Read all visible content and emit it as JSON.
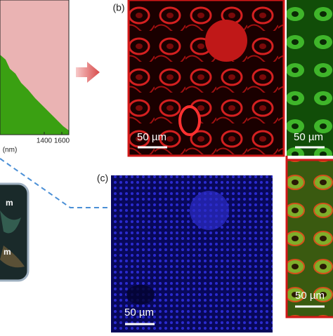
{
  "panel_a": {
    "tick_labels": [
      "1400",
      "1600"
    ],
    "unit_label": "(nm)",
    "image_labels": [
      "m",
      "m"
    ]
  },
  "panel_b": {
    "label": "(b)",
    "scale_bars": [
      "50 µm",
      "50 µm",
      "50 µm"
    ]
  },
  "panel_c": {
    "label": "(c)",
    "scale_bar": "50 µm"
  }
}
